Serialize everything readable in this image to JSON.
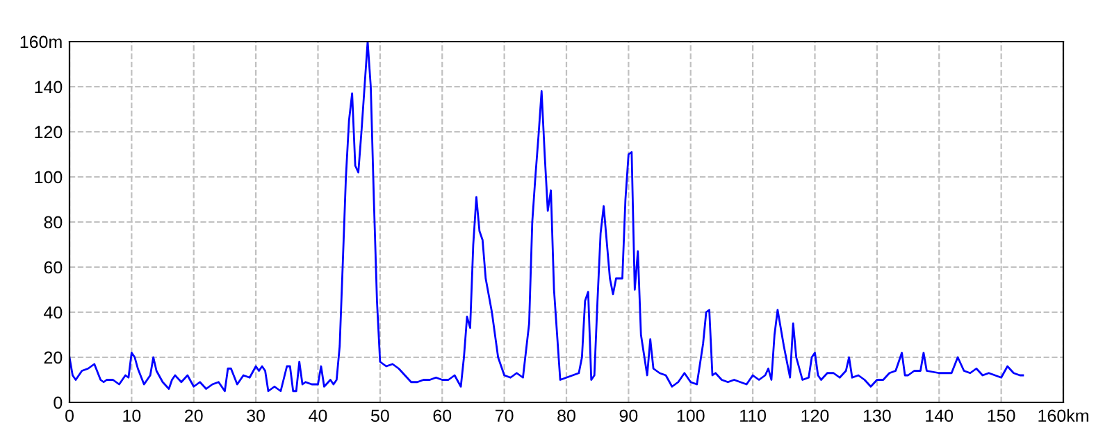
{
  "chart_data": {
    "type": "line",
    "marker": "none",
    "line_style": "solid",
    "grid": true,
    "legend": false,
    "xlim": [
      0,
      160
    ],
    "ylim": [
      0,
      160
    ],
    "xticks": [
      0,
      10,
      20,
      30,
      40,
      50,
      60,
      70,
      80,
      90,
      100,
      110,
      120,
      130,
      140,
      150,
      {
        "value": 160,
        "label": "160km"
      }
    ],
    "yticks": [
      0,
      20,
      40,
      60,
      80,
      100,
      120,
      140,
      {
        "value": 160,
        "label": "160m"
      }
    ],
    "x": [
      0,
      0.5,
      1,
      2,
      3,
      4,
      5,
      5.5,
      6,
      7,
      8,
      9,
      9.5,
      10,
      10.5,
      11,
      12,
      13,
      13.5,
      14,
      15,
      16,
      16.5,
      17,
      18,
      19,
      20,
      21,
      22,
      23,
      24,
      25,
      25.5,
      26,
      27,
      28,
      29,
      30,
      30.5,
      31,
      31.5,
      32,
      33,
      34,
      35,
      35.5,
      36,
      36.5,
      37,
      37.5,
      38,
      39,
      40,
      40.5,
      41,
      42,
      42.5,
      43,
      43.5,
      44,
      44.5,
      45,
      45.5,
      46,
      46.5,
      47,
      47.5,
      48,
      48.5,
      49,
      49.5,
      50,
      51,
      52,
      53,
      54,
      55,
      56,
      57,
      58,
      59,
      60,
      61,
      62,
      63,
      63.5,
      64,
      64.5,
      65,
      65.5,
      66,
      66.5,
      67,
      68,
      69,
      70,
      71,
      72,
      73,
      74,
      74.5,
      75,
      75.5,
      76,
      76.5,
      77,
      77.5,
      78,
      79,
      80,
      81,
      82,
      82.5,
      83,
      83.5,
      84,
      84.5,
      85,
      85.5,
      86,
      87,
      87.5,
      88,
      89,
      89.5,
      90,
      90.5,
      91,
      91.5,
      92,
      93,
      93.5,
      94,
      95,
      96,
      97,
      98,
      99,
      100,
      101,
      102,
      102.5,
      103,
      103.5,
      104,
      105,
      106,
      107,
      108,
      109,
      110,
      111,
      112,
      112.5,
      113,
      113.5,
      114,
      115,
      116,
      116.5,
      117,
      118,
      119,
      119.5,
      120,
      120.5,
      121,
      122,
      123,
      124,
      125,
      125.5,
      126,
      127,
      128,
      129,
      130,
      131,
      132,
      133,
      134,
      134.5,
      135,
      136,
      137,
      137.5,
      138,
      140,
      142,
      143,
      144,
      145,
      146,
      147,
      148,
      149,
      150,
      151,
      152,
      153,
      153.5
    ],
    "series": [
      {
        "color": "#0000ff",
        "values": [
          20,
          12,
          10,
          14,
          15,
          17,
          10,
          9,
          10,
          10,
          8,
          12,
          11,
          22,
          20,
          15,
          8,
          12,
          20,
          14,
          9,
          6,
          10,
          12,
          9,
          12,
          7,
          9,
          6,
          8,
          9,
          5,
          15,
          15,
          8,
          12,
          11,
          16,
          14,
          16,
          14,
          5,
          7,
          5,
          16,
          16,
          5,
          5,
          18,
          8,
          9,
          8,
          8,
          16,
          7,
          10,
          8,
          10,
          25,
          62,
          100,
          125,
          137,
          105,
          102,
          120,
          140,
          160,
          140,
          90,
          45,
          18,
          16,
          17,
          15,
          12,
          9,
          9,
          10,
          10,
          11,
          10,
          10,
          12,
          7,
          20,
          38,
          33,
          70,
          91,
          76,
          72,
          55,
          40,
          20,
          12,
          11,
          13,
          11,
          35,
          80,
          100,
          118,
          138,
          110,
          85,
          94,
          50,
          10,
          11,
          12,
          13,
          20,
          45,
          49,
          10,
          12,
          45,
          75,
          87,
          55,
          48,
          55,
          55,
          90,
          110,
          111,
          50,
          67,
          30,
          12,
          28,
          15,
          13,
          12,
          7,
          9,
          13,
          9,
          8,
          26,
          40,
          41,
          12,
          13,
          10,
          9,
          10,
          9,
          8,
          12,
          10,
          12,
          15,
          10,
          30,
          41,
          25,
          11,
          35,
          20,
          10,
          11,
          20,
          22,
          12,
          10,
          13,
          13,
          11,
          14,
          20,
          11,
          12,
          10,
          7,
          10,
          10,
          13,
          14,
          22,
          12,
          12,
          14,
          14,
          22,
          14,
          13,
          13,
          20,
          14,
          13,
          15,
          12,
          13,
          12,
          11,
          16,
          13,
          12,
          12
        ]
      }
    ]
  }
}
